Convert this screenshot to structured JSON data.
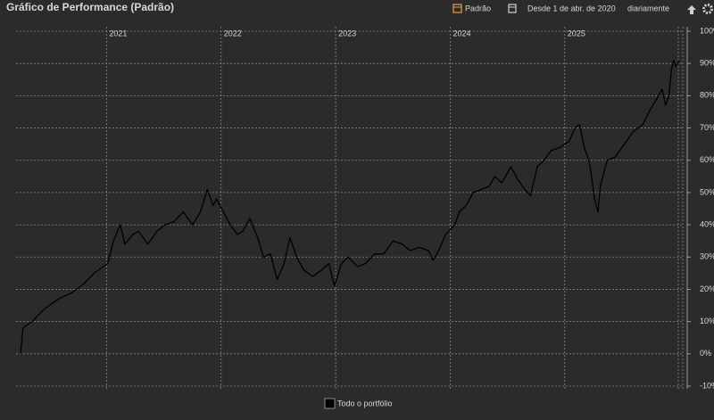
{
  "chart_data": {
    "type": "line",
    "title": "Gráfico de Performance (Padrão)",
    "x": [
      2020.25,
      2020.27,
      2020.35,
      2020.46,
      2020.58,
      2020.7,
      2020.81,
      2020.89,
      2020.97,
      2021.01,
      2021.06,
      2021.12,
      2021.16,
      2021.23,
      2021.28,
      2021.36,
      2021.44,
      2021.51,
      2021.59,
      2021.67,
      2021.75,
      2021.82,
      2021.88,
      2021.93,
      2021.96,
      2022.02,
      2022.08,
      2022.14,
      2022.19,
      2022.25,
      2022.32,
      2022.37,
      2022.43,
      2022.49,
      2022.55,
      2022.6,
      2022.66,
      2022.72,
      2022.8,
      2022.88,
      2022.94,
      2022.99,
      2023.05,
      2023.11,
      2023.19,
      2023.26,
      2023.34,
      2023.42,
      2023.5,
      2023.58,
      2023.65,
      2023.73,
      2023.81,
      2023.85,
      2023.9,
      2023.96,
      2024.04,
      2024.08,
      2024.14,
      2024.2,
      2024.28,
      2024.34,
      2024.39,
      2024.45,
      2024.53,
      2024.59,
      2024.65,
      2024.7,
      2024.76,
      2024.82,
      2024.88,
      2024.96,
      2025.04,
      2025.09,
      2025.13,
      2025.17,
      2025.21,
      2025.23,
      2025.26,
      2025.29,
      2025.31,
      2025.37,
      2025.44,
      2025.52,
      2025.6,
      2025.68,
      2025.75,
      2025.82,
      2025.85,
      2025.88,
      2025.91,
      2025.93,
      2025.95,
      2025.97,
      2026.0
    ],
    "series": [
      {
        "name": "Todo o portfólio",
        "color": "#000000",
        "values": [
          0,
          8,
          10,
          14,
          17,
          19,
          22,
          25,
          27,
          28,
          35,
          40,
          34,
          37,
          38,
          34,
          38,
          40,
          41,
          44,
          40,
          44,
          51,
          46,
          48,
          44,
          40,
          37,
          38,
          42,
          36,
          30,
          31,
          23,
          28,
          36,
          30,
          26,
          24,
          26,
          28,
          21,
          28,
          30,
          27,
          28,
          31,
          31,
          35,
          34,
          32,
          33,
          32,
          29,
          32,
          37,
          40,
          44,
          46,
          50,
          51,
          52,
          55,
          53,
          58,
          54,
          51,
          49,
          58,
          60,
          63,
          64,
          66,
          70,
          71,
          64,
          60,
          56,
          48,
          44,
          52,
          60,
          61,
          65,
          69,
          71,
          76,
          80,
          82,
          77,
          80,
          88,
          91,
          89,
          91
        ]
      }
    ],
    "xlim": [
      2020.21,
      2026.03
    ],
    "xticks": [
      2021,
      2022,
      2023,
      2024,
      2025
    ],
    "ylim": [
      -10,
      100
    ],
    "yticks": [
      {
        "value": -10,
        "label": "-10%"
      },
      {
        "value": 0,
        "label": "0%"
      },
      {
        "value": 10,
        "label": "10%"
      },
      {
        "value": 20,
        "label": "20%"
      },
      {
        "value": 30,
        "label": "30%"
      },
      {
        "value": 40,
        "label": "40%"
      },
      {
        "value": 50,
        "label": "50%"
      },
      {
        "value": 60,
        "label": "60%"
      },
      {
        "value": 70,
        "label": "70%"
      },
      {
        "value": 80,
        "label": "80%"
      },
      {
        "value": 90,
        "label": "90%"
      },
      {
        "value": 100,
        "label": "100%"
      }
    ],
    "grid": true
  },
  "toolbar": {
    "view": "Padrão",
    "since": "Desde 1 de abr. de 2020",
    "interval": "diariamente"
  }
}
